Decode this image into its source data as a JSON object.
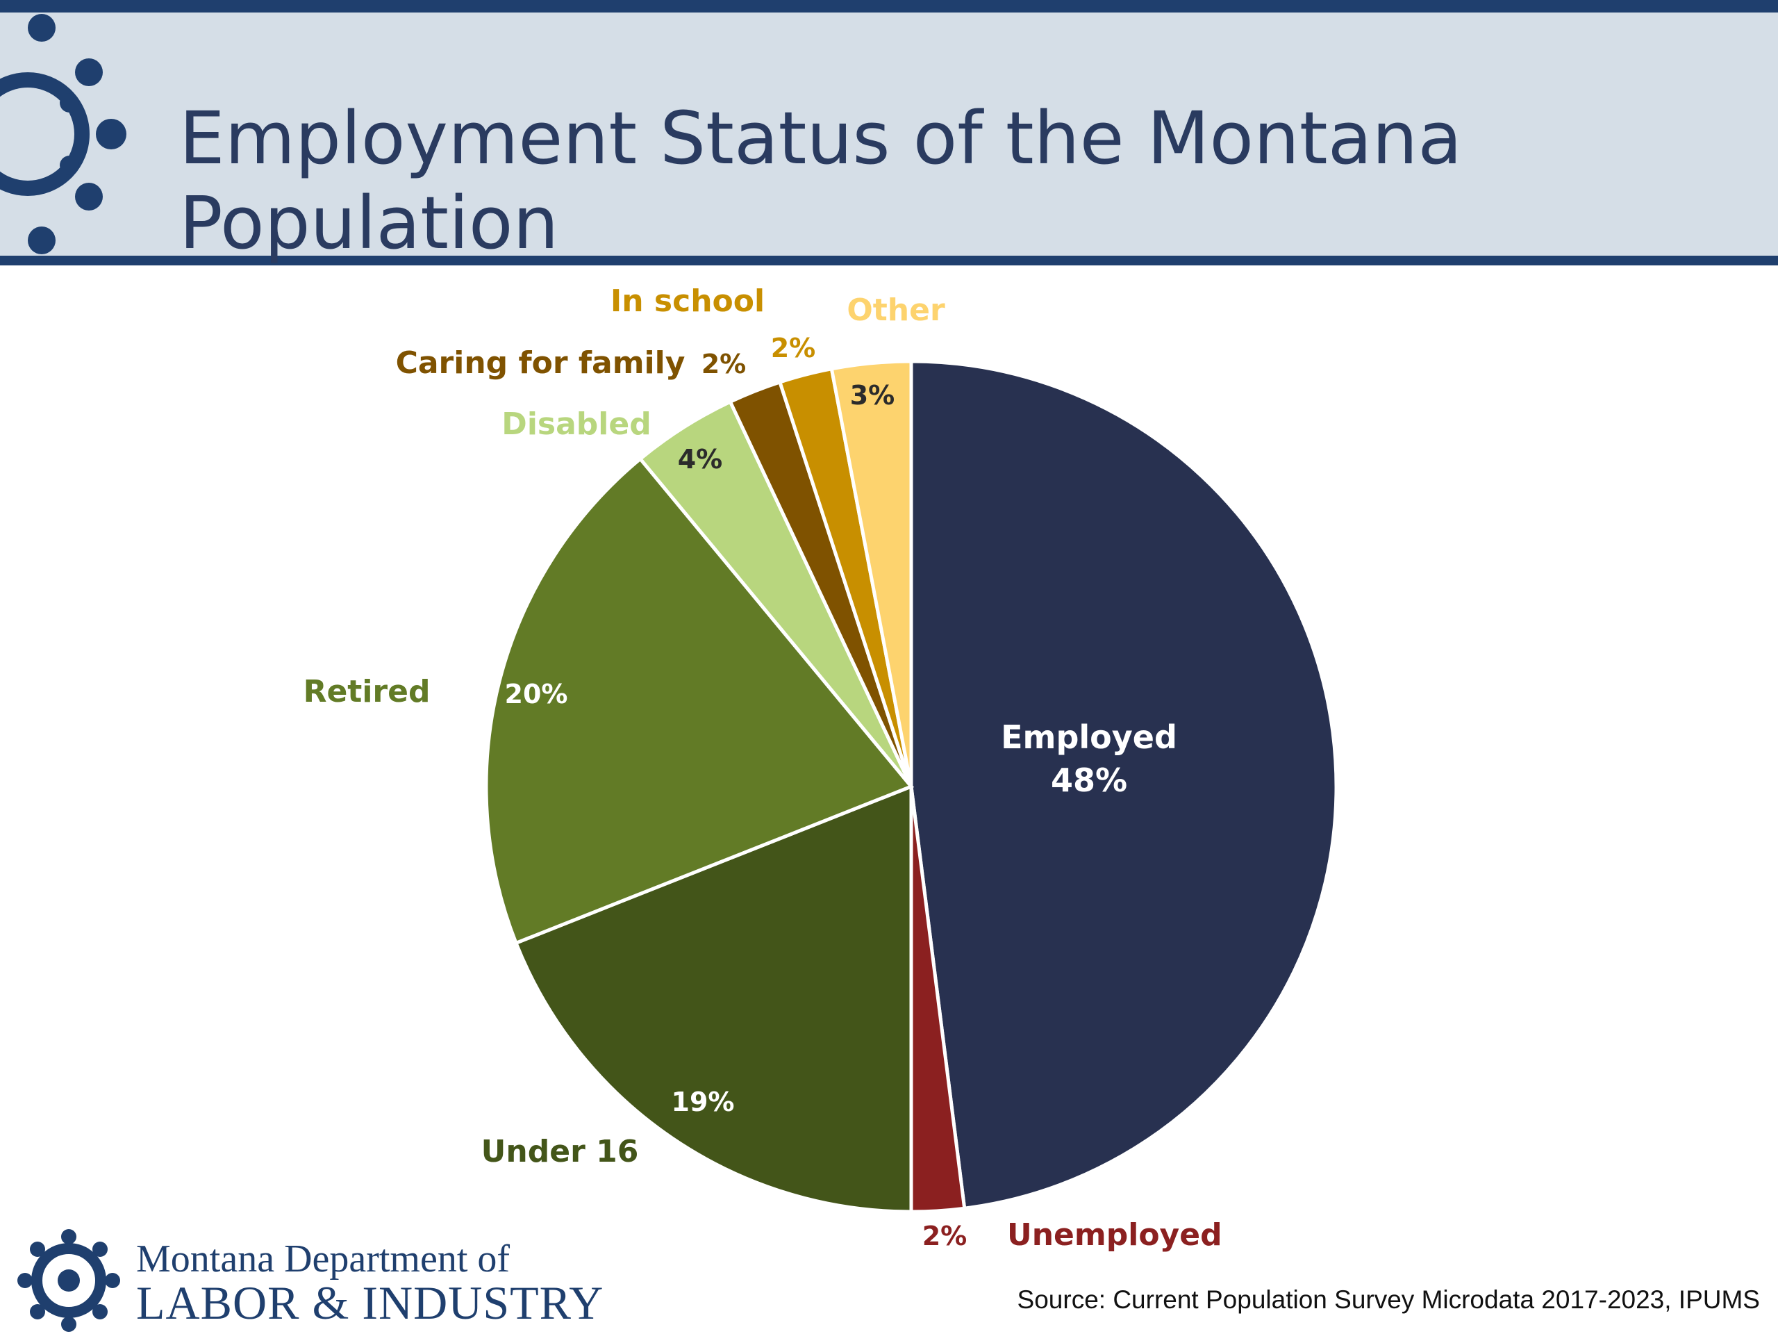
{
  "header": {
    "title": "Employment Status of the Montana Population"
  },
  "footer": {
    "org_line1": "Montana Department of",
    "org_line2": "LABOR & INDUSTRY",
    "source": "Source:  Current Population Survey Microdata 2017-2023, IPUMS"
  },
  "colors": {
    "banner": "#d5dee7",
    "brand_navy": "#1f3f6e"
  },
  "chart_data": {
    "type": "pie",
    "title": "Employment Status of the Montana Population",
    "start": "12 o'clock",
    "direction": "clockwise",
    "slices": [
      {
        "label": "Employed",
        "value": 48,
        "display": "48%",
        "color": "#283150"
      },
      {
        "label": "Unemployed",
        "value": 2,
        "display": "2%",
        "color": "#8b2020"
      },
      {
        "label": "Under 16",
        "value": 19,
        "display": "19%",
        "color": "#435519"
      },
      {
        "label": "Retired",
        "value": 20,
        "display": "20%",
        "color": "#627b26"
      },
      {
        "label": "Disabled",
        "value": 4,
        "display": "4%",
        "color": "#b8d67e"
      },
      {
        "label": "Caring for family",
        "value": 2,
        "display": "2%",
        "color": "#7f5200"
      },
      {
        "label": "In school",
        "value": 2,
        "display": "2%",
        "color": "#c88f00"
      },
      {
        "label": "Other",
        "value": 3,
        "display": "3%",
        "color": "#fdd36e"
      }
    ]
  }
}
